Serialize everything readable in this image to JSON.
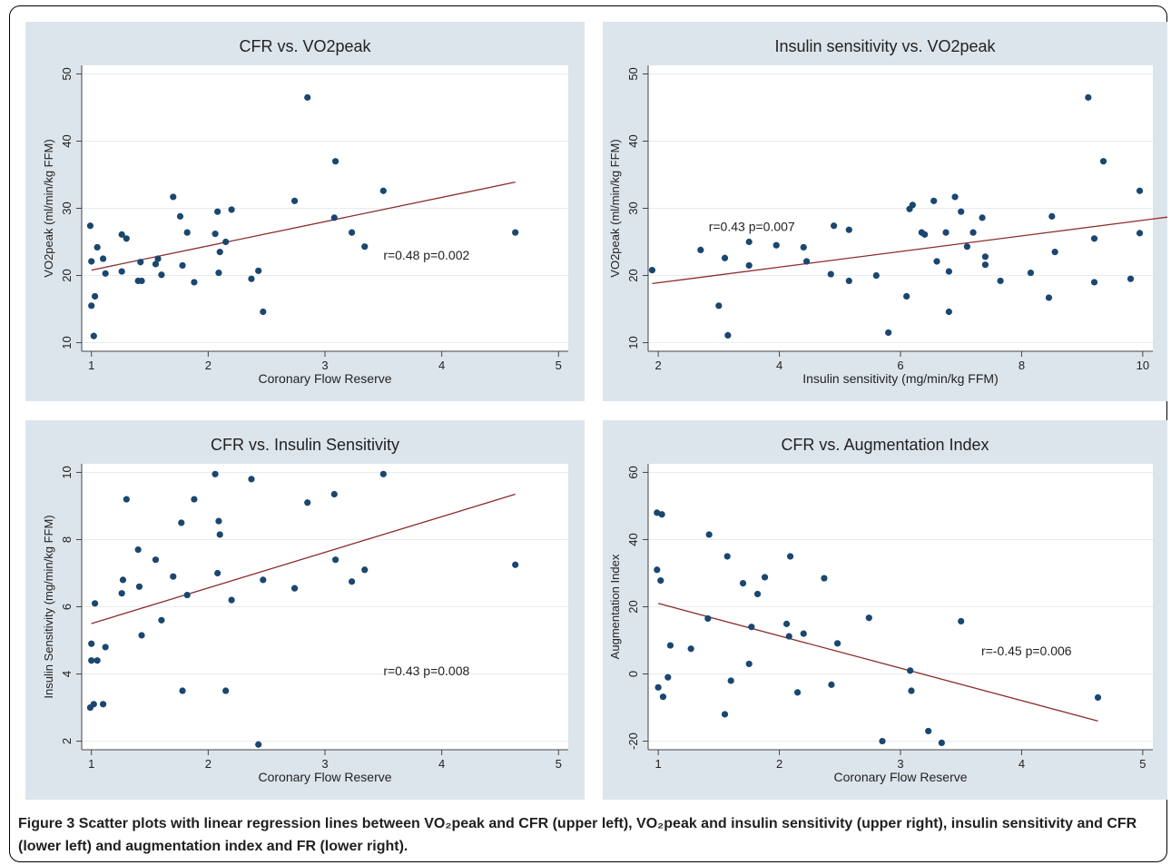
{
  "colors": {
    "panel_bg": "#dde5ec",
    "plot_bg": "#ffffff",
    "point": "#1a476f",
    "fit_line": "#8b2c2c",
    "axis": "#444444",
    "text": "#222222"
  },
  "chart_data": [
    {
      "type": "scatter",
      "title": "CFR vs. VO2peak",
      "xlabel": "Coronary Flow Reserve",
      "ylabel": "VO2peak (ml/min/kg FFM)",
      "xlim": [
        1,
        5
      ],
      "ylim": [
        10,
        50
      ],
      "xticks": [
        1,
        2,
        3,
        4,
        5
      ],
      "yticks": [
        10,
        20,
        30,
        40,
        50
      ],
      "grid": true,
      "annotation": "r=0.48 p=0.002",
      "fit_line": [
        [
          1.0,
          20.8
        ],
        [
          4.63,
          33.9
        ]
      ],
      "points": [
        [
          0.99,
          27.4
        ],
        [
          1.0,
          22.1
        ],
        [
          1.0,
          15.5
        ],
        [
          1.02,
          11.0
        ],
        [
          1.03,
          16.9
        ],
        [
          1.05,
          24.2
        ],
        [
          1.1,
          22.5
        ],
        [
          1.12,
          20.3
        ],
        [
          1.26,
          20.6
        ],
        [
          1.26,
          26.1
        ],
        [
          1.3,
          25.5
        ],
        [
          1.4,
          19.2
        ],
        [
          1.42,
          22.0
        ],
        [
          1.43,
          19.2
        ],
        [
          1.55,
          21.7
        ],
        [
          1.57,
          22.5
        ],
        [
          1.6,
          20.1
        ],
        [
          1.7,
          31.7
        ],
        [
          1.76,
          28.8
        ],
        [
          1.78,
          21.5
        ],
        [
          1.82,
          26.4
        ],
        [
          1.88,
          19.0
        ],
        [
          2.06,
          26.2
        ],
        [
          2.08,
          29.5
        ],
        [
          2.09,
          20.4
        ],
        [
          2.1,
          23.5
        ],
        [
          2.15,
          25.0
        ],
        [
          2.2,
          29.8
        ],
        [
          2.37,
          19.5
        ],
        [
          2.43,
          20.7
        ],
        [
          2.47,
          14.6
        ],
        [
          2.74,
          31.1
        ],
        [
          2.85,
          46.5
        ],
        [
          3.08,
          28.6
        ],
        [
          3.09,
          37.0
        ],
        [
          3.23,
          26.4
        ],
        [
          3.34,
          24.3
        ],
        [
          3.5,
          32.6
        ],
        [
          4.63,
          26.4
        ]
      ]
    },
    {
      "type": "scatter",
      "title": "Insulin sensitivity vs. VO2peak",
      "xlabel": "Insulin sensitivity (mg/min/kg FFM)",
      "ylabel": "VO2peak (ml/min/kg FFM)",
      "xlim": [
        2,
        10
      ],
      "ylim": [
        10,
        50
      ],
      "xticks": [
        2,
        4,
        6,
        8,
        10
      ],
      "yticks": [
        10,
        20,
        30,
        40,
        50
      ],
      "grid": true,
      "annotation": "r=0.43 p=0.007",
      "fit_line": [
        [
          1.9,
          18.8
        ],
        [
          10.5,
          28.8
        ]
      ],
      "points": [
        [
          1.9,
          20.8
        ],
        [
          2.7,
          23.8
        ],
        [
          3.0,
          15.5
        ],
        [
          3.1,
          22.6
        ],
        [
          3.15,
          11.1
        ],
        [
          3.5,
          25.0
        ],
        [
          3.5,
          21.5
        ],
        [
          3.95,
          24.5
        ],
        [
          4.4,
          24.2
        ],
        [
          4.45,
          22.1
        ],
        [
          4.85,
          20.2
        ],
        [
          4.9,
          27.4
        ],
        [
          5.15,
          26.8
        ],
        [
          5.15,
          19.2
        ],
        [
          5.6,
          20.0
        ],
        [
          5.8,
          11.5
        ],
        [
          6.1,
          16.9
        ],
        [
          6.15,
          29.9
        ],
        [
          6.2,
          30.5
        ],
        [
          6.35,
          26.4
        ],
        [
          6.4,
          26.1
        ],
        [
          6.55,
          31.1
        ],
        [
          6.6,
          22.1
        ],
        [
          6.75,
          26.4
        ],
        [
          6.8,
          20.6
        ],
        [
          6.8,
          14.6
        ],
        [
          6.9,
          31.7
        ],
        [
          7.0,
          29.5
        ],
        [
          7.1,
          24.3
        ],
        [
          7.2,
          26.4
        ],
        [
          7.35,
          28.6
        ],
        [
          7.4,
          22.8
        ],
        [
          7.4,
          21.6
        ],
        [
          7.65,
          19.2
        ],
        [
          8.15,
          20.4
        ],
        [
          8.45,
          16.7
        ],
        [
          8.5,
          28.8
        ],
        [
          8.55,
          23.5
        ],
        [
          9.1,
          46.5
        ],
        [
          9.2,
          25.5
        ],
        [
          9.2,
          19.0
        ],
        [
          9.35,
          37.0
        ],
        [
          9.8,
          19.5
        ],
        [
          9.95,
          32.6
        ],
        [
          9.95,
          26.3
        ],
        [
          10.5,
          33.2
        ]
      ]
    },
    {
      "type": "scatter",
      "title": "CFR vs. Insulin Sensitivity",
      "xlabel": "Coronary Flow Reserve",
      "ylabel": "Insulin Sensitivity (mg/min/kg FFM)",
      "xlim": [
        1,
        5
      ],
      "ylim": [
        2,
        10
      ],
      "xticks": [
        1,
        2,
        3,
        4,
        5
      ],
      "yticks": [
        2,
        4,
        6,
        8,
        10
      ],
      "grid": true,
      "annotation": "r=0.43 p=0.008",
      "fit_line": [
        [
          1.0,
          5.5
        ],
        [
          4.63,
          9.35
        ]
      ],
      "points": [
        [
          0.99,
          3.0
        ],
        [
          1.0,
          4.9
        ],
        [
          1.0,
          4.4
        ],
        [
          1.02,
          3.1
        ],
        [
          1.03,
          6.1
        ],
        [
          1.05,
          4.4
        ],
        [
          1.1,
          3.1
        ],
        [
          1.12,
          4.8
        ],
        [
          1.26,
          6.4
        ],
        [
          1.27,
          6.8
        ],
        [
          1.3,
          9.2
        ],
        [
          1.4,
          7.7
        ],
        [
          1.41,
          6.6
        ],
        [
          1.43,
          5.15
        ],
        [
          1.55,
          7.4
        ],
        [
          1.6,
          5.6
        ],
        [
          1.7,
          6.9
        ],
        [
          1.77,
          8.5
        ],
        [
          1.78,
          3.5
        ],
        [
          1.82,
          6.35
        ],
        [
          1.88,
          9.2
        ],
        [
          2.06,
          9.95
        ],
        [
          2.08,
          7.0
        ],
        [
          2.09,
          8.55
        ],
        [
          2.1,
          8.15
        ],
        [
          2.15,
          3.5
        ],
        [
          2.2,
          6.2
        ],
        [
          2.37,
          9.8
        ],
        [
          2.43,
          1.9
        ],
        [
          2.47,
          6.8
        ],
        [
          2.74,
          6.55
        ],
        [
          2.85,
          9.1
        ],
        [
          3.08,
          9.35
        ],
        [
          3.09,
          7.4
        ],
        [
          3.23,
          6.75
        ],
        [
          3.34,
          7.1
        ],
        [
          3.5,
          9.95
        ],
        [
          4.63,
          7.25
        ]
      ]
    },
    {
      "type": "scatter",
      "title": "CFR vs. Augmentation Index",
      "xlabel": "Coronary Flow Reserve",
      "ylabel": "Augmentation Index",
      "xlim": [
        1,
        5
      ],
      "ylim": [
        -20,
        60
      ],
      "xticks": [
        1,
        2,
        3,
        4,
        5
      ],
      "yticks": [
        -20,
        0,
        20,
        40,
        60
      ],
      "grid": true,
      "annotation": "r=-0.45 p=0.006",
      "fit_line": [
        [
          1.0,
          21.0
        ],
        [
          4.63,
          -14.0
        ]
      ],
      "points": [
        [
          0.99,
          48.0
        ],
        [
          0.99,
          31.0
        ],
        [
          1.0,
          -4.0
        ],
        [
          1.02,
          27.8
        ],
        [
          1.03,
          47.5
        ],
        [
          1.04,
          -6.8
        ],
        [
          1.08,
          -1.0
        ],
        [
          1.1,
          8.5
        ],
        [
          1.27,
          7.5
        ],
        [
          1.42,
          41.5
        ],
        [
          1.41,
          16.5
        ],
        [
          1.55,
          -12.0
        ],
        [
          1.57,
          35.0
        ],
        [
          1.6,
          -2.0
        ],
        [
          1.7,
          27.0
        ],
        [
          1.75,
          3.0
        ],
        [
          1.77,
          14.0
        ],
        [
          1.82,
          23.8
        ],
        [
          1.88,
          28.8
        ],
        [
          2.06,
          14.9
        ],
        [
          2.08,
          11.2
        ],
        [
          2.09,
          35.0
        ],
        [
          2.15,
          -5.5
        ],
        [
          2.2,
          12.0
        ],
        [
          2.37,
          28.5
        ],
        [
          2.43,
          -3.2
        ],
        [
          2.48,
          9.1
        ],
        [
          2.74,
          16.7
        ],
        [
          2.85,
          -20.0
        ],
        [
          3.08,
          1.0
        ],
        [
          3.09,
          -5.0
        ],
        [
          3.23,
          -17.0
        ],
        [
          3.34,
          -20.5
        ],
        [
          3.5,
          15.7
        ],
        [
          4.63,
          -7.0
        ]
      ]
    }
  ],
  "caption": {
    "label": "Figure 3",
    "text": "Scatter plots with linear regression lines between VO₂peak and CFR (upper left), VO₂peak and insulin sensitivity (upper right), insulin sensitivity and CFR (lower left) and augmentation index and FR (lower right)."
  }
}
